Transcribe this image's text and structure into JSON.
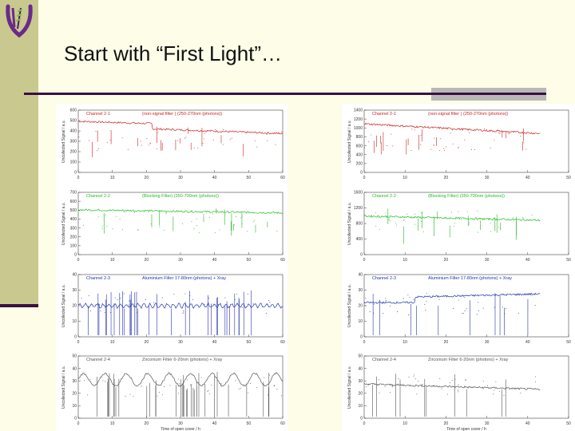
{
  "slide": {
    "title": "Start with “First Light”…"
  },
  "colors": {
    "sidebar": "#c9c98f",
    "rule": "#3a0f40",
    "background": "#fdfde8",
    "logo": "#6a2a8a"
  },
  "x_axis_label": "Time of open cover / h",
  "charts": [
    {
      "panel": "left",
      "row": 0,
      "title_left": "Channel 2-1",
      "title_right": "(non-signal filter    )   (250-270nm (photons))",
      "ylabel": "Uncollected Signal / a.u.",
      "yticks": [
        "0",
        "100",
        "200",
        "300",
        "400",
        "500",
        "600"
      ],
      "xticks": [
        "0",
        "10",
        "20",
        "30",
        "40",
        "50",
        "60"
      ],
      "color": "#cc2222"
    },
    {
      "panel": "left",
      "row": 1,
      "title_left": "Channel 2-2",
      "title_right": "(Blocking Filter)   (350-700nm (photons))",
      "ylabel": "Uncollected Signal / a.u.",
      "yticks": [
        "0",
        "100",
        "200",
        "300",
        "400",
        "500",
        "600",
        "700"
      ],
      "xticks": [
        "0",
        "10",
        "20",
        "30",
        "40",
        "50",
        "60"
      ],
      "color": "#22bb22"
    },
    {
      "panel": "left",
      "row": 2,
      "title_left": "Channel 2-3",
      "title_right": "Aluminium Filter   17-80nm (photons) + Xray",
      "ylabel": "Uncollected Signal / a.u.",
      "yticks": [
        "0",
        "10",
        "20",
        "30",
        "40"
      ],
      "xticks": [
        "0",
        "10",
        "20",
        "30",
        "40",
        "50",
        "60"
      ],
      "color": "#2233aa"
    },
    {
      "panel": "left",
      "row": 3,
      "title_left": "Channel 2-4",
      "title_right": "Zirconium Filter   6-20nm (photons) + Xray",
      "ylabel": "Uncollected Signal / a.u.",
      "yticks": [
        "0",
        "10",
        "20",
        "30",
        "40",
        "50"
      ],
      "xticks": [
        "0",
        "10",
        "20",
        "30",
        "40",
        "50",
        "60"
      ],
      "color": "#555555"
    },
    {
      "panel": "right",
      "row": 0,
      "title_left": "Channel 2-1",
      "title_right": "(non-signal filter    )   (250-270nm (photons))",
      "ylabel": "Uncollected Signal / a.u.",
      "yticks": [
        "0",
        "200",
        "400",
        "600",
        "800",
        "1000",
        "1200",
        "1400"
      ],
      "xticks": [
        "0",
        "10",
        "20",
        "30",
        "40",
        "50"
      ],
      "color": "#cc2222"
    },
    {
      "panel": "right",
      "row": 1,
      "title_left": "Channel 2-2",
      "title_right": "(Blocking Filter)   (350-700nm (photons))",
      "ylabel": "Uncollected Signal / a.u.",
      "yticks": [
        "0",
        "400",
        "800",
        "1200",
        "1600"
      ],
      "xticks": [
        "0",
        "10",
        "20",
        "30",
        "40",
        "50"
      ],
      "color": "#22bb22"
    },
    {
      "panel": "right",
      "row": 2,
      "title_left": "Channel 2-3",
      "title_right": "Aluminium Filter   17-80nm (photons) + Xray",
      "ylabel": "Uncollected Signal / a.u.",
      "yticks": [
        "0",
        "10",
        "20",
        "30",
        "40"
      ],
      "xticks": [
        "0",
        "10",
        "20",
        "30",
        "40",
        "50"
      ],
      "color": "#2233aa"
    },
    {
      "panel": "right",
      "row": 3,
      "title_left": "Channel 2-4",
      "title_right": "Zirconium Filter   6-20nm (photons) + Xray",
      "ylabel": "Uncollected Signal / a.u.",
      "yticks": [
        "0",
        "10",
        "20",
        "30",
        "40",
        "50"
      ],
      "xticks": [
        "0",
        "10",
        "20",
        "30",
        "40",
        "50"
      ],
      "color": "#555555"
    }
  ]
}
